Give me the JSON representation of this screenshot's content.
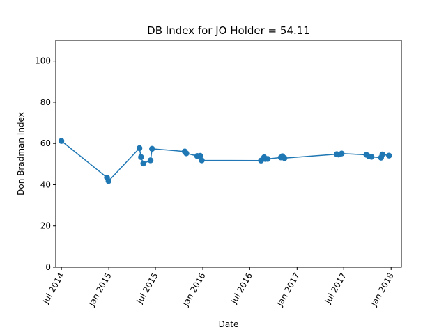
{
  "chart_data": {
    "type": "line",
    "title": "DB Index for JO Holder = 54.11",
    "xlabel": "Date",
    "ylabel": "Don Bradman Index",
    "ylim": [
      0,
      110
    ],
    "xlim": [
      "2014-06-09",
      "2018-02-10"
    ],
    "y_ticks": [
      0,
      20,
      40,
      60,
      80,
      100
    ],
    "x_ticks": [
      {
        "date": "2014-07-01",
        "label": "Jul 2014"
      },
      {
        "date": "2015-01-01",
        "label": "Jan 2015"
      },
      {
        "date": "2015-07-01",
        "label": "Jul 2015"
      },
      {
        "date": "2016-01-01",
        "label": "Jan 2016"
      },
      {
        "date": "2016-07-01",
        "label": "Jul 2016"
      },
      {
        "date": "2017-01-01",
        "label": "Jan 2017"
      },
      {
        "date": "2017-07-01",
        "label": "Jul 2017"
      },
      {
        "date": "2018-01-01",
        "label": "Jan 2018"
      }
    ],
    "grid": false,
    "color": "#1f77b4",
    "markers": true,
    "series": [
      {
        "points": [
          {
            "x": "2014-07-01",
            "y": 61.2
          },
          {
            "x": "2014-12-25",
            "y": 43.5
          },
          {
            "x": "2014-12-31",
            "y": 41.8
          },
          {
            "x": "2015-04-30",
            "y": 57.7
          },
          {
            "x": "2015-05-06",
            "y": 53.4
          },
          {
            "x": "2015-05-15",
            "y": 50.3
          },
          {
            "x": "2015-06-12",
            "y": 51.8
          },
          {
            "x": "2015-06-18",
            "y": 57.4
          },
          {
            "x": "2015-10-23",
            "y": 56.1
          },
          {
            "x": "2015-10-29",
            "y": 55.2
          },
          {
            "x": "2015-12-10",
            "y": 53.9
          },
          {
            "x": "2015-12-22",
            "y": 54.0
          },
          {
            "x": "2015-12-28",
            "y": 51.8
          },
          {
            "x": "2016-08-14",
            "y": 51.7
          },
          {
            "x": "2016-08-26",
            "y": 53.3
          },
          {
            "x": "2016-08-30",
            "y": 52.5
          },
          {
            "x": "2016-09-09",
            "y": 52.5
          },
          {
            "x": "2016-10-30",
            "y": 53.2
          },
          {
            "x": "2016-11-05",
            "y": 53.8
          },
          {
            "x": "2016-11-13",
            "y": 52.9
          },
          {
            "x": "2017-06-04",
            "y": 54.8
          },
          {
            "x": "2017-06-11",
            "y": 54.6
          },
          {
            "x": "2017-06-23",
            "y": 55.1
          },
          {
            "x": "2017-09-27",
            "y": 54.5
          },
          {
            "x": "2017-10-07",
            "y": 53.7
          },
          {
            "x": "2017-10-17",
            "y": 53.5
          },
          {
            "x": "2017-11-23",
            "y": 53.1
          },
          {
            "x": "2017-11-28",
            "y": 54.7
          },
          {
            "x": "2017-12-24",
            "y": 54.1
          }
        ]
      }
    ]
  }
}
